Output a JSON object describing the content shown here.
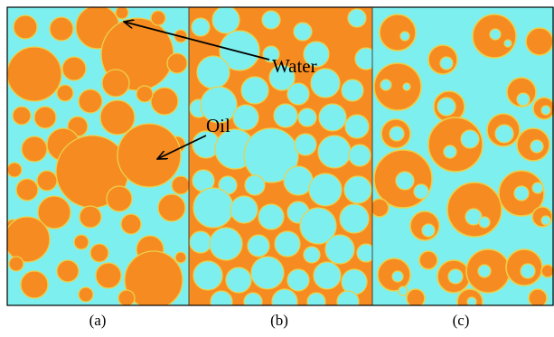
{
  "colors": {
    "water": "#7eefef",
    "oil": "#f68c21",
    "interface": "#ecd04a",
    "frame": "#000000",
    "background": "#ffffff"
  },
  "annotations": {
    "water_label": "Water",
    "oil_label": "Oil"
  },
  "panels": [
    {
      "caption": "(a)",
      "description_matrix": "water",
      "dispersed_phase": "oil"
    },
    {
      "caption": "(b)",
      "description_matrix": "oil",
      "dispersed_phase": "water"
    },
    {
      "caption": "(c)",
      "description_matrix": "water",
      "dispersed_phase": "oil-with-water-inclusions"
    }
  ]
}
